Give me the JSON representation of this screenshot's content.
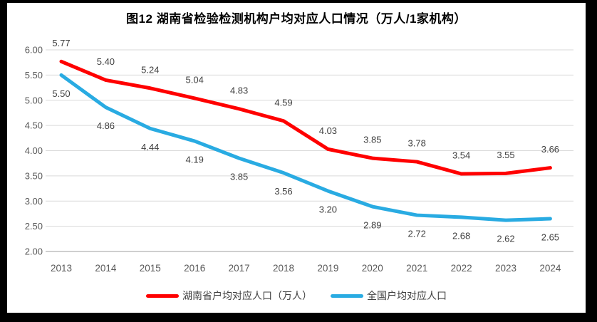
{
  "frame": {
    "background": "#000000",
    "chart_background": "#ffffff"
  },
  "chart_data": {
    "type": "line",
    "title": "图12 湖南省检验检测机构户均对应人口情况（万人/1家机构）",
    "categories": [
      "2013",
      "2014",
      "2015",
      "2016",
      "2017",
      "2018",
      "2019",
      "2020",
      "2021",
      "2022",
      "2023",
      "2024"
    ],
    "series": [
      {
        "name": "湖南省户均对应人口（万人）",
        "color": "#FF0000",
        "label_position": "above",
        "values": [
          5.77,
          5.4,
          5.24,
          5.04,
          4.83,
          4.59,
          4.03,
          3.85,
          3.78,
          3.54,
          3.55,
          3.66
        ]
      },
      {
        "name": "全国户均对应人口",
        "color": "#29ABE2",
        "label_position": "below",
        "values": [
          5.5,
          4.86,
          4.44,
          4.19,
          3.85,
          3.56,
          3.2,
          2.89,
          2.72,
          2.68,
          2.62,
          2.65
        ]
      }
    ],
    "xlabel": "",
    "ylabel": "",
    "ylim": [
      2.0,
      6.0
    ],
    "ytick_step": 0.5,
    "grid": true,
    "legend_position": "bottom",
    "grid_color": "#D9D9D9",
    "axis_color": "#BFBFBF",
    "tick_label_color": "#595959",
    "data_label_color": "#404040"
  }
}
